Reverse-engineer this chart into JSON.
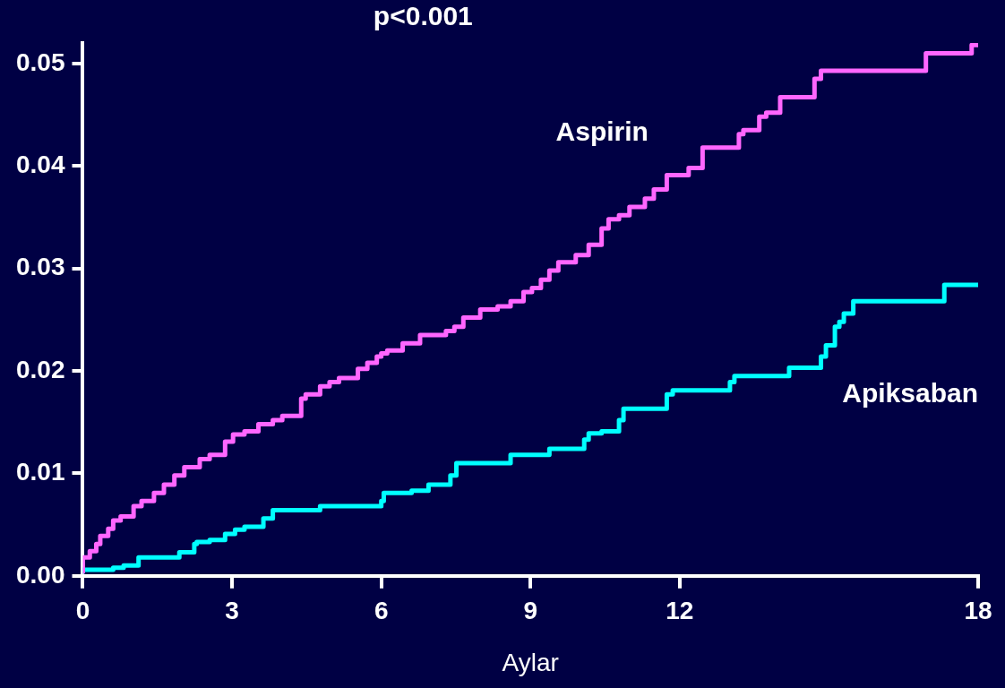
{
  "chart_data": {
    "type": "step",
    "xlabel": "Aylar",
    "annotations": [
      "p<0.001"
    ],
    "xlim": [
      0,
      18
    ],
    "xticks": [
      0,
      3,
      6,
      9,
      12,
      18
    ],
    "ylim": [
      0,
      0.052
    ],
    "yticks": [
      {
        "value": 0,
        "label": "0.00"
      },
      {
        "value": 0.01,
        "label": "0.01"
      },
      {
        "value": 0.02,
        "label": "0.02"
      },
      {
        "value": 0.03,
        "label": "0.03"
      },
      {
        "value": 0.04,
        "label": "0.04"
      },
      {
        "value": 0.05,
        "label": "0.05"
      }
    ],
    "grid": false,
    "legend": false,
    "marker": "none",
    "line_style": "solid",
    "series": [
      {
        "name": "Aspirin",
        "color": "#ff66ff",
        "x": [
          0,
          0.14,
          0.27,
          0.35,
          0.51,
          0.61,
          0.76,
          1.02,
          1.18,
          1.43,
          1.63,
          1.84,
          2.04,
          2.35,
          2.55,
          2.86,
          3.02,
          3.25,
          3.53,
          3.82,
          4.01,
          4.39,
          4.48,
          4.77,
          4.96,
          5.15,
          5.53,
          5.72,
          5.91,
          6.0,
          6.12,
          6.43,
          6.78,
          7.04,
          7.3,
          7.47,
          7.65,
          7.99,
          8.34,
          8.6,
          8.86,
          9.03,
          9.21,
          9.38,
          9.56,
          9.91,
          10.17,
          10.43,
          10.57,
          10.78,
          10.99,
          11.3,
          11.48,
          11.74,
          11.83,
          12.18,
          12.46,
          12.55,
          13.19,
          13.28,
          13.6,
          13.74,
          14.02,
          14.11,
          14.71,
          14.84,
          15.06,
          16.95,
          17.14,
          17.87,
          18
        ],
        "values": [
          0.0004,
          0.0018,
          0.0024,
          0.0031,
          0.0039,
          0.0046,
          0.0054,
          0.0058,
          0.0068,
          0.0073,
          0.0081,
          0.0089,
          0.0098,
          0.0106,
          0.0114,
          0.0118,
          0.0131,
          0.0138,
          0.0141,
          0.0148,
          0.0152,
          0.0156,
          0.0173,
          0.0177,
          0.0185,
          0.0189,
          0.0193,
          0.0202,
          0.0208,
          0.0214,
          0.0217,
          0.022,
          0.0227,
          0.0235,
          0.0235,
          0.0239,
          0.0243,
          0.0252,
          0.026,
          0.0263,
          0.0268,
          0.0277,
          0.0281,
          0.0289,
          0.0298,
          0.0306,
          0.0313,
          0.0323,
          0.0339,
          0.0348,
          0.0352,
          0.036,
          0.0368,
          0.0377,
          0.0391,
          0.0391,
          0.0398,
          0.0418,
          0.0418,
          0.0431,
          0.0435,
          0.0448,
          0.0452,
          0.0467,
          0.0467,
          0.0485,
          0.0493,
          0.0493,
          0.051,
          0.051,
          0.0518
        ]
      },
      {
        "name": "Apiksaban",
        "color": "#00ffff",
        "x": [
          0,
          0.61,
          0.82,
          1.12,
          1.22,
          1.94,
          2.24,
          2.29,
          2.55,
          2.86,
          3.06,
          3.25,
          3.63,
          3.82,
          3.91,
          4.77,
          4.86,
          5.15,
          6.0,
          6.05,
          6.26,
          6.61,
          6.95,
          7.39,
          7.51,
          7.73,
          8.6,
          8.69,
          9.38,
          9.47,
          10.08,
          10.17,
          10.43,
          10.78,
          10.87,
          11.04,
          11.74,
          11.86,
          12.0,
          13.01,
          13.1,
          13.25,
          14.2,
          14.26,
          14.84,
          14.94,
          15.12,
          15.21,
          15.3,
          15.49,
          15.63,
          17.32,
          17.41,
          18
        ],
        "values": [
          0.0004,
          0.0006,
          0.0008,
          0.001,
          0.0018,
          0.0018,
          0.0023,
          0.0031,
          0.0033,
          0.0035,
          0.0041,
          0.0045,
          0.0048,
          0.0056,
          0.0064,
          0.0064,
          0.0068,
          0.0068,
          0.0068,
          0.0073,
          0.0081,
          0.0081,
          0.0083,
          0.0089,
          0.0098,
          0.011,
          0.011,
          0.0118,
          0.0118,
          0.0124,
          0.0124,
          0.0133,
          0.0139,
          0.0141,
          0.0152,
          0.0163,
          0.0163,
          0.0177,
          0.0181,
          0.0181,
          0.0189,
          0.0195,
          0.0195,
          0.0203,
          0.0203,
          0.0214,
          0.0225,
          0.0243,
          0.0248,
          0.0256,
          0.0268,
          0.0268,
          0.0284,
          0.0284
        ]
      }
    ]
  }
}
